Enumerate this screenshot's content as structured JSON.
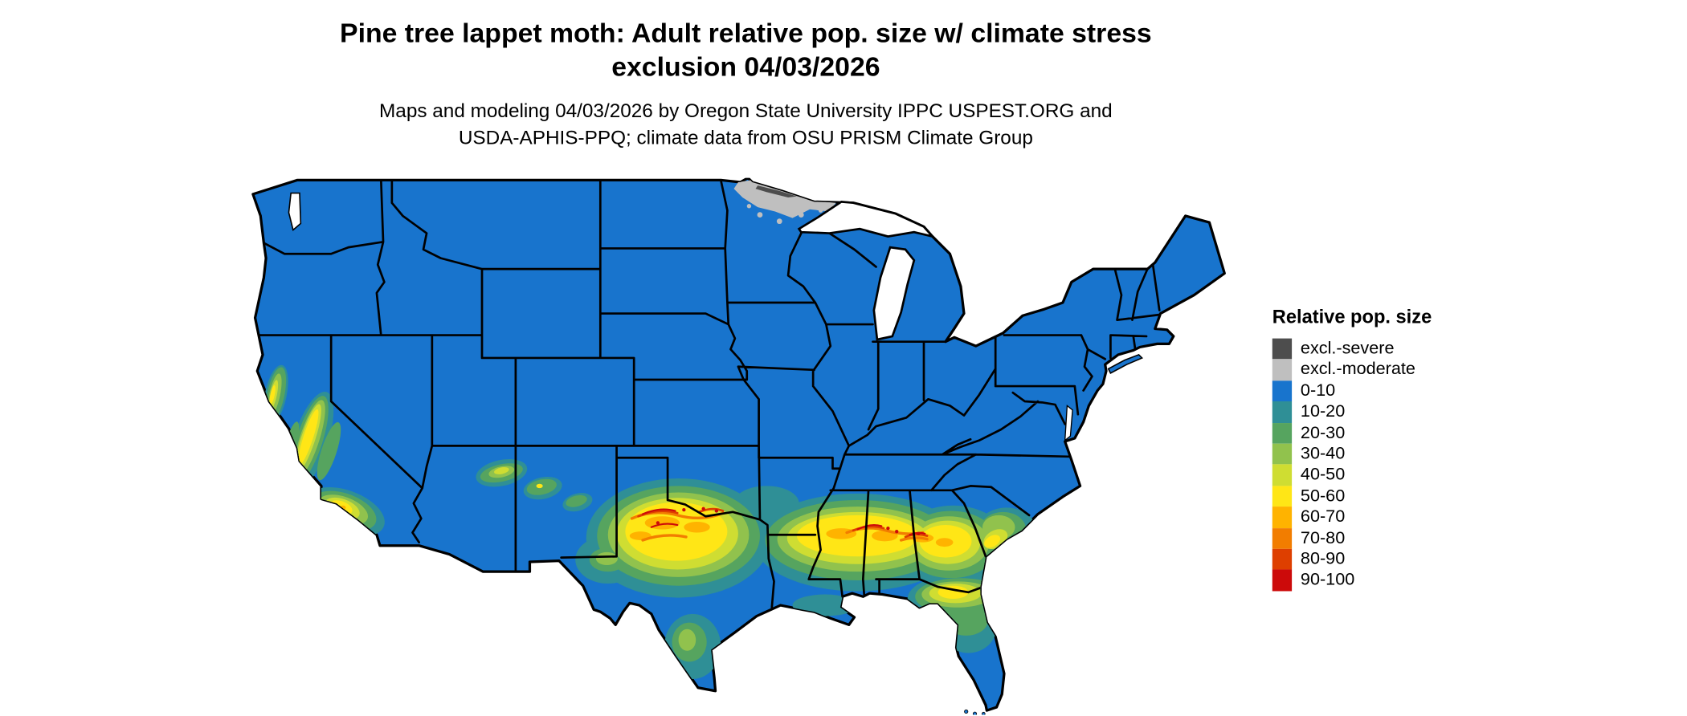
{
  "figure": {
    "title_line1": "Pine tree lappet moth: Adult relative pop. size w/ climate stress",
    "title_line2": "exclusion 04/03/2026",
    "subtitle_line1": "Maps and modeling 04/03/2026 by Oregon State University IPPC USPEST.ORG and",
    "subtitle_line2": "USDA-APHIS-PPQ; climate data from OSU PRISM Climate Group"
  },
  "legend": {
    "title": "Relative pop. size",
    "items": [
      {
        "key": "excl_severe",
        "label": "excl.-severe",
        "color": "#4d4d4d"
      },
      {
        "key": "excl_moderate",
        "label": "excl.-moderate",
        "color": "#bfbfbf"
      },
      {
        "key": "b0_10",
        "label": "0-10",
        "color": "#1874cd"
      },
      {
        "key": "b10_20",
        "label": "10-20",
        "color": "#2f8f96"
      },
      {
        "key": "b20_30",
        "label": "20-30",
        "color": "#56a45f"
      },
      {
        "key": "b30_40",
        "label": "30-40",
        "color": "#91c24d"
      },
      {
        "key": "b40_50",
        "label": "40-50",
        "color": "#cfdd32"
      },
      {
        "key": "b50_60",
        "label": "50-60",
        "color": "#ffe616"
      },
      {
        "key": "b60_70",
        "label": "60-70",
        "color": "#ffb300"
      },
      {
        "key": "b70_80",
        "label": "70-80",
        "color": "#f27d00"
      },
      {
        "key": "b80_90",
        "label": "80-90",
        "color": "#de3f00"
      },
      {
        "key": "b90_100",
        "label": "90-100",
        "color": "#cc0a0a"
      }
    ]
  },
  "map": {
    "state_border_color": "#000000",
    "water_color": "#ffffff"
  }
}
